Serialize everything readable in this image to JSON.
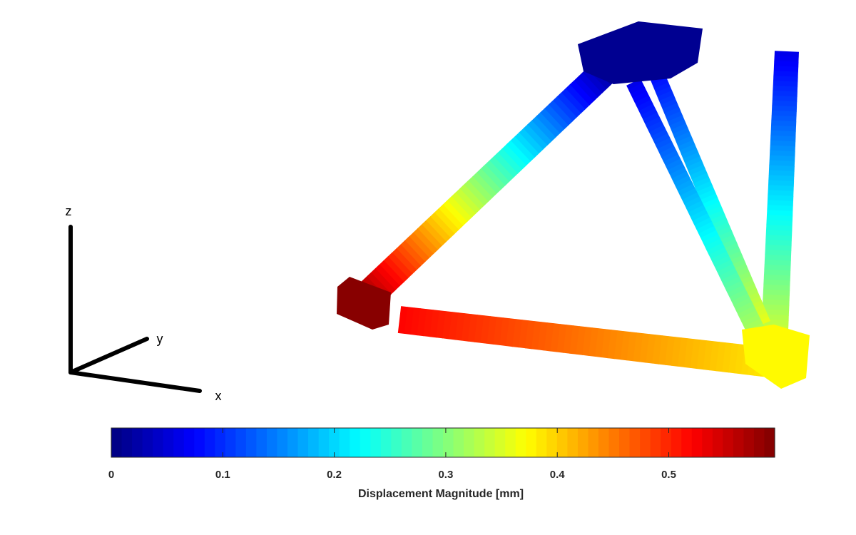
{
  "chart_data": {
    "type": "heatmap",
    "colormap": "jet",
    "colorbar": {
      "label": "Displacement Magnitude [mm]",
      "clim": [
        0,
        0.595
      ],
      "ticks": [
        0,
        0.1,
        0.2,
        0.3,
        0.4,
        0.5
      ],
      "tick_labels": [
        "0",
        "0.1",
        "0.2",
        "0.3",
        "0.4",
        "0.5"
      ],
      "levels": 64,
      "orientation": "horizontal",
      "location": "bottom"
    },
    "members": [
      {
        "name": "diagonal strut (upper hub to left end)",
        "start_value": 0.0,
        "end_value": 0.59
      },
      {
        "name": "inner strut (upper hub to right corner)",
        "start_value": 0.06,
        "end_value": 0.33
      },
      {
        "name": "outer strut (upper hub to right corner)",
        "start_value": 0.08,
        "end_value": 0.36
      },
      {
        "name": "vertical post (top to right corner)",
        "start_value": 0.06,
        "end_value": 0.36
      },
      {
        "name": "bottom beam (left end to right corner)",
        "start_value": 0.52,
        "end_value": 0.38
      }
    ],
    "triad_labels": {
      "x": "x",
      "y": "y",
      "z": "z"
    }
  }
}
